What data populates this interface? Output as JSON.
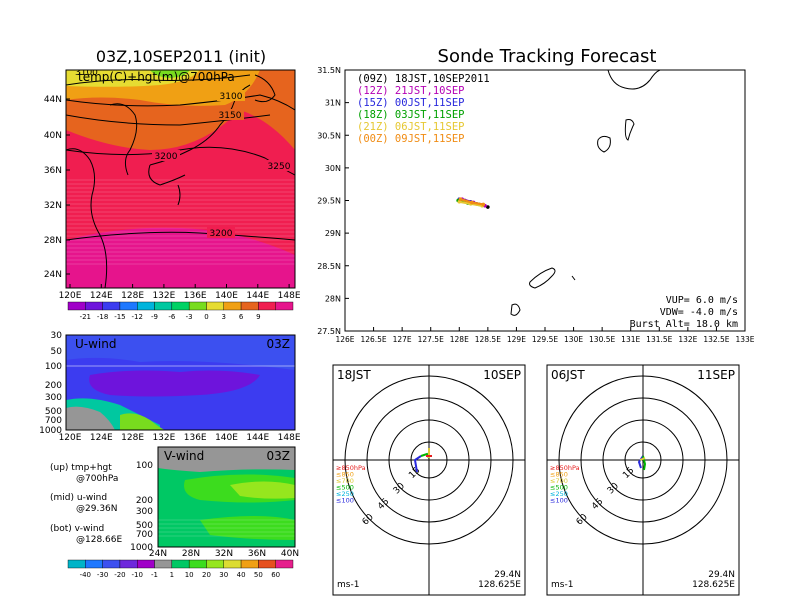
{
  "left_panel": {
    "title": "03Z,10SEP2011 (init)",
    "subtitle": "temp(C)+hgt(m)@700hPa",
    "lat_labels": [
      "44N",
      "40N",
      "36N",
      "32N",
      "28N",
      "24N"
    ],
    "lon_labels": [
      "120E",
      "124E",
      "128E",
      "132E",
      "136E",
      "140E",
      "144E",
      "148E"
    ],
    "contours": [
      "3100",
      "3100",
      "3150",
      "3200",
      "3250",
      "3200"
    ],
    "colorbar_labels": [
      "-21",
      "-18",
      "-15",
      "-12",
      "-9",
      "-6",
      "-3",
      "0",
      "3",
      "6",
      "9"
    ],
    "colorbar_colors": [
      "#a000c8",
      "#6e14dc",
      "#3c3cf0",
      "#1e78ff",
      "#00b4dc",
      "#00c8a0",
      "#00d264",
      "#78dc1e",
      "#e6dc32",
      "#f0a014",
      "#e6641e",
      "#f01e50",
      "#e6148c"
    ]
  },
  "uwind_panel": {
    "label": "U-wind",
    "time": "03Z",
    "y_labels": [
      "30",
      "50",
      "100",
      "200",
      "300",
      "500",
      "700",
      "1000"
    ],
    "x_labels": [
      "120E",
      "124E",
      "128E",
      "132E",
      "136E",
      "140E",
      "144E",
      "148E"
    ]
  },
  "vwind_panel": {
    "label": "V-wind",
    "time": "03Z",
    "y_labels": [
      "100",
      "200",
      "300",
      "500",
      "700",
      "1000"
    ],
    "x_labels": [
      "24N",
      "28N",
      "32N",
      "36N",
      "40N"
    ],
    "colorbar_labels": [
      "-40",
      "-30",
      "-20",
      "-10",
      "-1",
      "1",
      "10",
      "20",
      "30",
      "40",
      "50",
      "60"
    ],
    "colorbar_colors": [
      "#00b4c8",
      "#1e78ff",
      "#3c50f0",
      "#6e28dc",
      "#a000c8",
      "#969696",
      "#00c864",
      "#3cdc1e",
      "#96e61e",
      "#dcdc32",
      "#f0a014",
      "#e6501e",
      "#e61e8c"
    ]
  },
  "legend_notes": [
    {
      "a": "(up) tmp+hgt",
      "b": "@700hPa"
    },
    {
      "a": "(mid) u-wind",
      "b": "@29.36N"
    },
    {
      "a": "(bot) v-wind",
      "b": "@128.66E"
    }
  ],
  "main": {
    "title": "Sonde Tracking Forecast",
    "legend": [
      {
        "text": "(09Z)  18JST,10SEP2011",
        "color": "#000000"
      },
      {
        "text": "(12Z)  21JST,10SEP",
        "color": "#b400b4"
      },
      {
        "text": "(15Z)  00JST,11SEP",
        "color": "#2828dc"
      },
      {
        "text": "(18Z)  03JST,11SEP",
        "color": "#00a000"
      },
      {
        "text": "(21Z)  06JST,11SEP",
        "color": "#e6c832"
      },
      {
        "text": "(00Z)  09JST,11SEP",
        "color": "#f08c14"
      }
    ],
    "info": [
      "VUP=  6.0 m/s",
      "VDW= -4.0 m/s",
      "Burst Alt= 18.0 km"
    ]
  },
  "chart_data": {
    "type": "scatter",
    "title": "Sonde Tracking Forecast",
    "xlim": [
      126,
      133
    ],
    "ylim": [
      27.5,
      31.5
    ],
    "x_ticks": [
      "126E",
      "126.5E",
      "127E",
      "127.5E",
      "128E",
      "128.5E",
      "129E",
      "129.5E",
      "130E",
      "130.5E",
      "131E",
      "131.5E",
      "132E",
      "132.5E",
      "133E"
    ],
    "y_ticks": [
      "27.5N",
      "28N",
      "28.5N",
      "29N",
      "29.5N",
      "30N",
      "30.5N",
      "31N",
      "31.5N"
    ],
    "series": [
      {
        "name": "(09Z)  18JST,10SEP2011",
        "color": "#000000",
        "points": [
          [
            128.1,
            29.5
          ],
          [
            128.3,
            29.45
          ],
          [
            128.5,
            29.4
          ]
        ]
      },
      {
        "name": "(12Z)  21JST,10SEP",
        "color": "#b400b4",
        "points": [
          [
            128.05,
            29.52
          ],
          [
            128.25,
            29.47
          ],
          [
            128.45,
            29.42
          ]
        ]
      },
      {
        "name": "(15Z)  00JST,11SEP",
        "color": "#2828dc",
        "points": [
          [
            128.0,
            29.52
          ],
          [
            128.2,
            29.48
          ],
          [
            128.4,
            29.43
          ]
        ]
      },
      {
        "name": "(18Z)  03JST,11SEP",
        "color": "#00a000",
        "points": [
          [
            127.98,
            29.5
          ],
          [
            128.15,
            29.46
          ],
          [
            128.35,
            29.44
          ]
        ]
      },
      {
        "name": "(21Z)  06JST,11SEP",
        "color": "#e6c832",
        "points": [
          [
            128.0,
            29.48
          ],
          [
            128.2,
            29.45
          ],
          [
            128.4,
            29.42
          ]
        ]
      },
      {
        "name": "(00Z)  09JST,11SEP",
        "color": "#f08c14",
        "points": [
          [
            128.02,
            29.52
          ],
          [
            128.22,
            29.47
          ],
          [
            128.42,
            29.44
          ]
        ]
      }
    ]
  },
  "hodo_left": {
    "time_label": "18JST",
    "date_label": "10SEP",
    "rings": [
      "15",
      "30",
      "45",
      "60"
    ],
    "pressure_legend": [
      "≥850hPa",
      "≤850",
      "≤700",
      "≤500",
      "≤250",
      "≤100"
    ],
    "pressure_colors": [
      "#e61e1e",
      "#f0a014",
      "#dcc832",
      "#00b400",
      "#00b4dc",
      "#2828dc"
    ],
    "lat": "29.4N",
    "lon": "128.625E",
    "unit": "ms-1"
  },
  "hodo_right": {
    "time_label": "06JST",
    "date_label": "11SEP",
    "rings": [
      "15",
      "30",
      "45",
      "60"
    ],
    "pressure_legend": [
      "≥850hPa",
      "≤850",
      "≤700",
      "≤500",
      "≤250",
      "≤100"
    ],
    "pressure_colors": [
      "#e61e1e",
      "#f0a014",
      "#dcc832",
      "#00b400",
      "#00b4dc",
      "#2828dc"
    ],
    "lat": "29.4N",
    "lon": "128.625E",
    "unit": "ms-1"
  }
}
